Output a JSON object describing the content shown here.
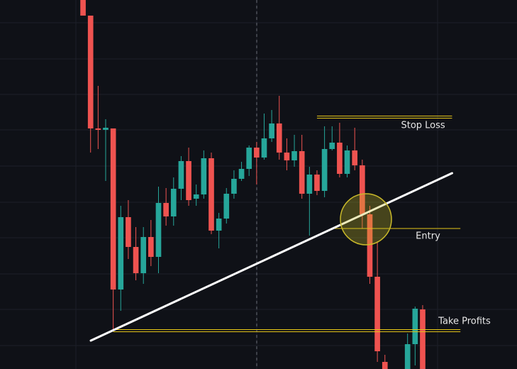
{
  "chart_data": {
    "type": "candlestick",
    "x": [
      0,
      1,
      2,
      3,
      4,
      5,
      6,
      7,
      8,
      9,
      10,
      11,
      12,
      13,
      14,
      15,
      16,
      17,
      18,
      19,
      20,
      21,
      22,
      23,
      24,
      25,
      26,
      27,
      28,
      29,
      30,
      31,
      32,
      33,
      34,
      35,
      36,
      37,
      38,
      39,
      40,
      43,
      44,
      45
    ],
    "open": [
      520,
      498,
      339,
      337,
      339,
      112,
      214,
      172,
      135,
      186,
      158,
      234,
      215,
      254,
      293,
      240,
      246,
      297,
      195,
      212,
      247,
      268,
      282,
      312,
      298,
      325,
      346,
      305,
      294,
      307,
      247,
      274,
      251,
      310,
      319,
      275,
      308,
      287,
      218,
      130,
      10,
      0,
      35,
      84
    ],
    "high": [
      520,
      498,
      399,
      352,
      339,
      230,
      238,
      200,
      200,
      210,
      257,
      255,
      270,
      300,
      312,
      260,
      308,
      305,
      220,
      255,
      280,
      292,
      315,
      320,
      360,
      365,
      385,
      325,
      330,
      330,
      285,
      280,
      342,
      342,
      347,
      315,
      340,
      295,
      230,
      180,
      20,
      50,
      88,
      90
    ],
    "low": [
      498,
      305,
      310,
      265,
      55,
      82,
      155,
      125,
      120,
      145,
      135,
      202,
      202,
      238,
      230,
      230,
      240,
      190,
      170,
      205,
      240,
      265,
      272,
      260,
      295,
      320,
      295,
      280,
      285,
      240,
      188,
      245,
      242,
      308,
      270,
      270,
      280,
      198,
      120,
      10,
      0,
      0,
      5,
      0
    ],
    "close": [
      498,
      339,
      337,
      340,
      112,
      214,
      172,
      135,
      186,
      158,
      234,
      215,
      254,
      293,
      238,
      246,
      297,
      195,
      212,
      247,
      268,
      282,
      312,
      298,
      325,
      346,
      305,
      294,
      307,
      247,
      274,
      251,
      310,
      319,
      275,
      308,
      287,
      218,
      130,
      25,
      0,
      35,
      85,
      0
    ],
    "up_color": "#26a69a",
    "down_color": "#ef5350",
    "xlim": [
      -11,
      57.5
    ],
    "ylim": [
      0,
      520
    ],
    "trendline": {
      "x": [
        1.03,
        48.9
      ],
      "y": [
        40,
        276
      ],
      "color": "#ffffff"
    },
    "levels": [
      {
        "label": "Stop Loss",
        "value": 355,
        "x": [
          31,
          48.9
        ],
        "color": "#e6c619",
        "double": true
      },
      {
        "label": "Entry",
        "value": 198,
        "x": [
          33.2,
          50
        ],
        "color": "#e6c619",
        "double": false
      },
      {
        "label": "Take Profits",
        "value": 54,
        "x": [
          4,
          50
        ],
        "color": "#e6c619",
        "double": true
      }
    ]
  }
}
